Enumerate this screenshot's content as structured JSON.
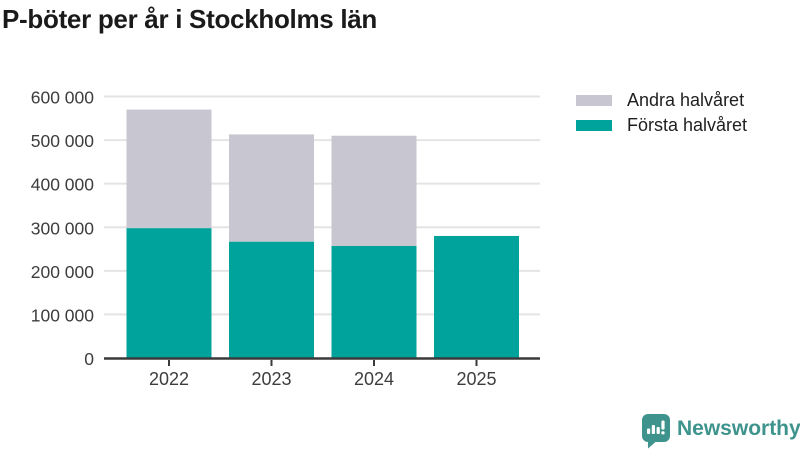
{
  "title": "P-böter per år i Stockholms län",
  "legend": {
    "items": [
      {
        "label": "Andra halvåret",
        "color": "#c8c6d0"
      },
      {
        "label": "Första halvåret",
        "color": "#00a39b"
      }
    ]
  },
  "chart_data": {
    "type": "bar",
    "stacked": true,
    "title": "P-böter per år i Stockholms län",
    "categories": [
      "2022",
      "2023",
      "2024",
      "2025"
    ],
    "series": [
      {
        "name": "Första halvåret",
        "color": "#00a39b",
        "values": [
          298000,
          267000,
          257000,
          280000
        ]
      },
      {
        "name": "Andra halvåret",
        "color": "#c8c6d0",
        "values": [
          272000,
          246000,
          253000,
          0
        ]
      }
    ],
    "xlabel": "",
    "ylabel": "",
    "ylim": [
      0,
      600000
    ],
    "ytick_values": [
      0,
      100000,
      200000,
      300000,
      400000,
      500000,
      600000
    ],
    "ytick_labels": [
      "0",
      "100 000",
      "200 000",
      "300 000",
      "400 000",
      "500 000",
      "600 000"
    ],
    "grid": true,
    "legend_position": "top-right",
    "gridline_color": "#e4e4e4",
    "axis_color": "#3a3a3a",
    "label_color": "#3d3d3d"
  },
  "logo": {
    "text": "Newsworthy",
    "color": "#3e948d",
    "icon": "newsworthy-speech-bubble-chart-icon"
  }
}
